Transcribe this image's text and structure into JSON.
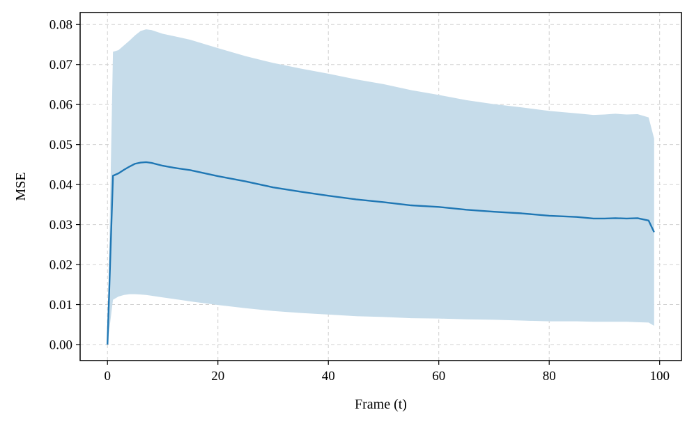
{
  "chart_data": {
    "type": "line",
    "title": "",
    "xlabel": "Frame (t)",
    "ylabel": "MSE",
    "xlim": [
      -4.95,
      103.95
    ],
    "ylim": [
      -0.004,
      0.083
    ],
    "xticks": [
      0,
      20,
      40,
      60,
      80,
      100
    ],
    "xtick_labels": [
      "0",
      "20",
      "40",
      "60",
      "80",
      "100"
    ],
    "yticks": [
      0.0,
      0.01,
      0.02,
      0.03,
      0.04,
      0.05,
      0.06,
      0.07,
      0.08
    ],
    "ytick_labels": [
      "0.00",
      "0.01",
      "0.02",
      "0.03",
      "0.04",
      "0.05",
      "0.06",
      "0.07",
      "0.08"
    ],
    "grid": true,
    "colors": {
      "line": "#1f77b4",
      "band": "#c6dcea"
    },
    "series": [
      {
        "x": [
          0,
          1,
          2,
          3,
          4,
          5,
          6,
          7,
          8,
          10,
          12,
          15,
          20,
          25,
          30,
          35,
          40,
          45,
          50,
          55,
          60,
          65,
          70,
          75,
          80,
          85,
          88,
          90,
          92,
          94,
          96,
          98,
          99
        ],
        "values": [
          0.0,
          0.0422,
          0.0428,
          0.0437,
          0.0445,
          0.0452,
          0.0455,
          0.0456,
          0.0454,
          0.0447,
          0.0442,
          0.0436,
          0.0421,
          0.0408,
          0.0393,
          0.0382,
          0.0372,
          0.0363,
          0.0356,
          0.0348,
          0.0344,
          0.0337,
          0.0332,
          0.0328,
          0.0322,
          0.0319,
          0.0315,
          0.0315,
          0.0316,
          0.0315,
          0.0316,
          0.031,
          0.0281
        ],
        "upper": [
          0.0,
          0.0732,
          0.0736,
          0.0748,
          0.076,
          0.0773,
          0.0784,
          0.0788,
          0.0786,
          0.0777,
          0.0771,
          0.0762,
          0.0741,
          0.0721,
          0.0704,
          0.069,
          0.0677,
          0.0663,
          0.0651,
          0.0636,
          0.0624,
          0.0611,
          0.0601,
          0.0593,
          0.0584,
          0.0578,
          0.0574,
          0.0575,
          0.0577,
          0.0575,
          0.0576,
          0.0568,
          0.0515
        ],
        "lower": [
          0.0,
          0.0112,
          0.012,
          0.0124,
          0.0126,
          0.0126,
          0.0125,
          0.0124,
          0.0122,
          0.0118,
          0.0114,
          0.0108,
          0.0099,
          0.0091,
          0.0084,
          0.0079,
          0.0075,
          0.0071,
          0.0069,
          0.0066,
          0.0065,
          0.0063,
          0.0062,
          0.006,
          0.0058,
          0.0058,
          0.0057,
          0.0057,
          0.0057,
          0.0057,
          0.0056,
          0.0055,
          0.0047
        ]
      }
    ]
  }
}
